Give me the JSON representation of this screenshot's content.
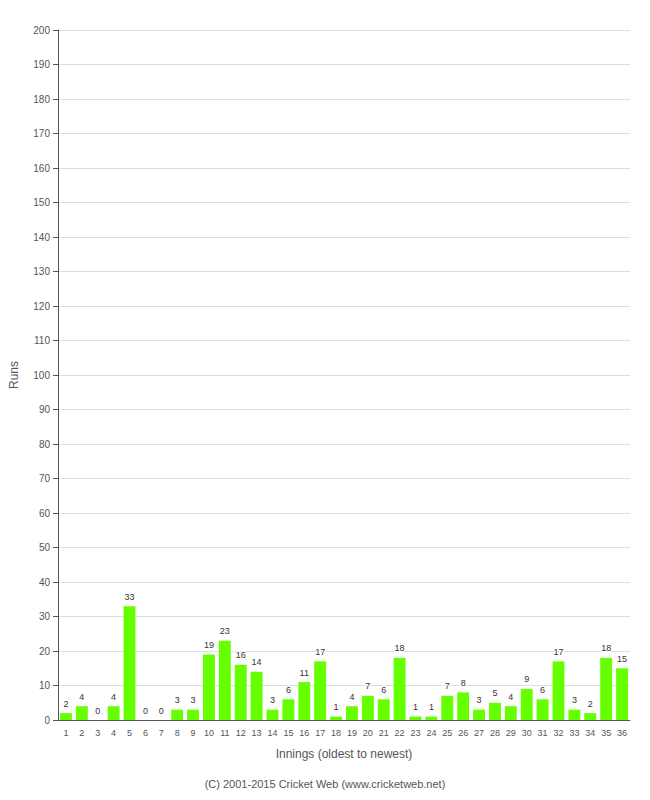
{
  "chart_data": {
    "type": "bar",
    "xlabel": "Innings (oldest to newest)",
    "ylabel": "Runs",
    "footer": "(C) 2001-2015 Cricket Web (www.cricketweb.net)",
    "categories": [
      "1",
      "2",
      "3",
      "4",
      "5",
      "6",
      "7",
      "8",
      "9",
      "10",
      "11",
      "12",
      "13",
      "14",
      "15",
      "16",
      "17",
      "18",
      "19",
      "20",
      "21",
      "22",
      "23",
      "24",
      "25",
      "26",
      "27",
      "28",
      "29",
      "30",
      "31",
      "32",
      "33",
      "34",
      "35",
      "36"
    ],
    "values": [
      2,
      4,
      0,
      4,
      33,
      0,
      0,
      3,
      3,
      19,
      23,
      16,
      14,
      3,
      6,
      11,
      17,
      1,
      4,
      7,
      6,
      18,
      1,
      1,
      7,
      8,
      3,
      5,
      4,
      9,
      6,
      17,
      3,
      2,
      18,
      15
    ],
    "color": "#66ff00",
    "ylim": [
      0,
      200
    ],
    "yticks": [
      0,
      10,
      20,
      30,
      40,
      50,
      60,
      70,
      80,
      90,
      100,
      110,
      120,
      130,
      140,
      150,
      160,
      170,
      180,
      190,
      200
    ],
    "grid": true,
    "data_labels": true
  }
}
